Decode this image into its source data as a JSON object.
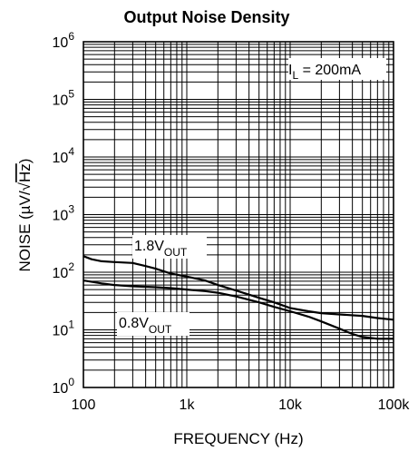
{
  "chart_data": {
    "type": "line",
    "title": "Output Noise Density",
    "xlabel": "FREQUENCY (Hz)",
    "ylabel_parts": {
      "prefix": "NOISE (",
      "mu": "µ",
      "mid": "V/",
      "root": "√",
      "rooted": "Hz",
      "suffix": ")"
    },
    "x_scale": "log",
    "y_scale": "log",
    "xlim": [
      100,
      100000
    ],
    "ylim": [
      1,
      1000000
    ],
    "grid": true,
    "x_ticks": [
      {
        "value": 100,
        "label": "100"
      },
      {
        "value": 1000,
        "label": "1k"
      },
      {
        "value": 10000,
        "label": "10k"
      },
      {
        "value": 100000,
        "label": "100k"
      }
    ],
    "y_ticks": [
      {
        "value": 1,
        "base": "10",
        "exp": "0"
      },
      {
        "value": 10,
        "base": "10",
        "exp": "1"
      },
      {
        "value": 100,
        "base": "10",
        "exp": "2"
      },
      {
        "value": 1000,
        "base": "10",
        "exp": "3"
      },
      {
        "value": 10000,
        "base": "10",
        "exp": "4"
      },
      {
        "value": 100000,
        "base": "10",
        "exp": "5"
      },
      {
        "value": 1000000,
        "base": "10",
        "exp": "6"
      }
    ],
    "annotations": {
      "load": {
        "main": "I",
        "sub": "L",
        "rest": " = 200mA"
      },
      "series_a": {
        "main": "1.8V",
        "sub": "OUT"
      },
      "series_b": {
        "main": "0.8V",
        "sub": "OUT"
      }
    },
    "series": [
      {
        "values": [
          [
            100,
            190
          ],
          [
            120,
            168
          ],
          [
            150,
            155
          ],
          [
            200,
            150
          ],
          [
            300,
            145
          ],
          [
            400,
            128
          ],
          [
            500,
            115
          ],
          [
            700,
            95
          ],
          [
            1000,
            84
          ],
          [
            1500,
            72
          ],
          [
            2000,
            60
          ],
          [
            3000,
            48
          ],
          [
            5000,
            36
          ],
          [
            7000,
            30
          ],
          [
            10000,
            24
          ],
          [
            15000,
            21
          ],
          [
            20000,
            19.5
          ],
          [
            30000,
            18.5
          ],
          [
            50000,
            17.5
          ],
          [
            70000,
            16
          ],
          [
            100000,
            15
          ]
        ]
      },
      {
        "values": [
          [
            100,
            72
          ],
          [
            150,
            64
          ],
          [
            200,
            60
          ],
          [
            300,
            57
          ],
          [
            500,
            55
          ],
          [
            700,
            53
          ],
          [
            1000,
            50
          ],
          [
            1500,
            47
          ],
          [
            2000,
            44
          ],
          [
            3000,
            38
          ],
          [
            5000,
            30
          ],
          [
            7000,
            25
          ],
          [
            10000,
            21
          ],
          [
            15000,
            17
          ],
          [
            20000,
            14
          ],
          [
            30000,
            10.5
          ],
          [
            40000,
            8.5
          ],
          [
            50000,
            7.5
          ],
          [
            70000,
            7
          ],
          [
            100000,
            7
          ]
        ]
      }
    ]
  }
}
